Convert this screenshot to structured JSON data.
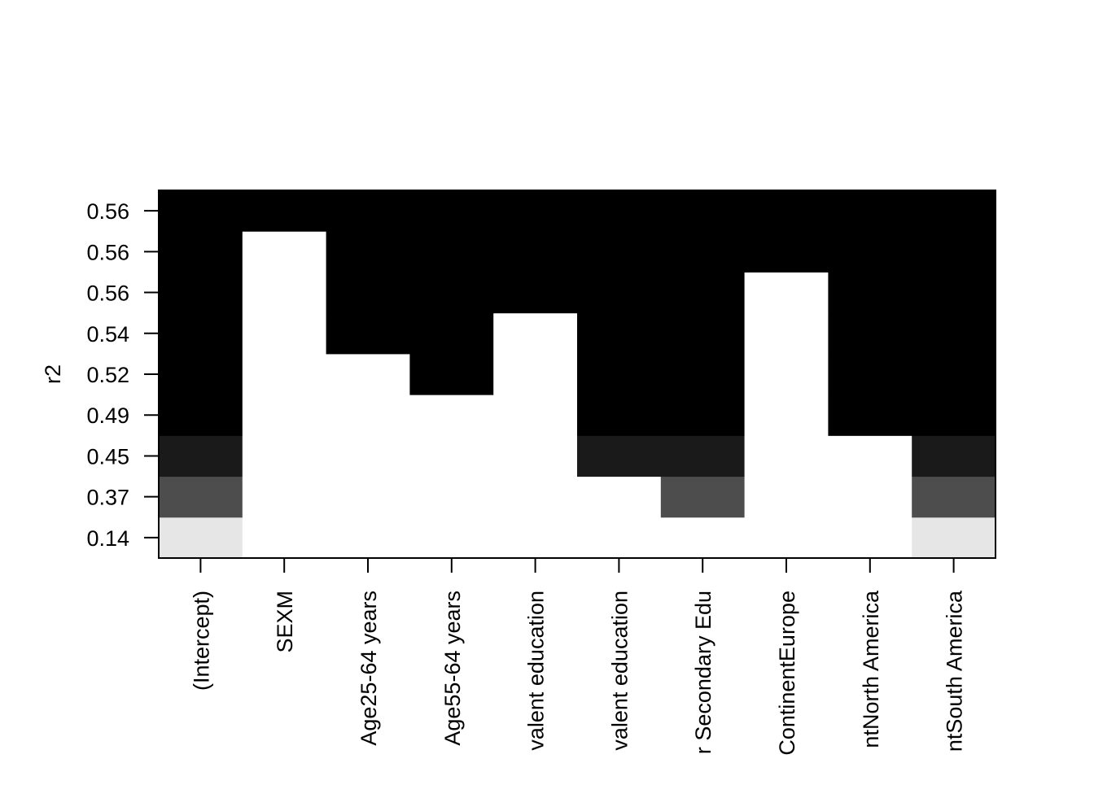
{
  "chart_data": {
    "type": "heatmap",
    "y_label": "r2",
    "categories": [
      "(Intercept)",
      "SEXM",
      "Age25-64 years",
      "Age55-64 years",
      "valent education",
      "valent education",
      "r Secondary Edu",
      "ContinentEurope",
      "ntNorth America",
      "ntSouth America"
    ],
    "row_labels": [
      0.14,
      0.37,
      0.45,
      0.49,
      0.52,
      0.54,
      0.56,
      0.56,
      0.56
    ],
    "row_colors": [
      "#e6e6e6",
      "#4d4d4d",
      "#1a1a1a",
      "#000000",
      "#000000",
      "#000000",
      "#000000",
      "#000000",
      "#000000"
    ],
    "empty_color": "#ffffff",
    "values": [
      [
        1,
        0,
        0,
        0,
        0,
        0,
        0,
        0,
        0,
        1
      ],
      [
        1,
        0,
        0,
        0,
        0,
        0,
        1,
        0,
        0,
        1
      ],
      [
        1,
        0,
        0,
        0,
        0,
        1,
        1,
        0,
        0,
        1
      ],
      [
        1,
        0,
        0,
        0,
        0,
        1,
        1,
        0,
        1,
        1
      ],
      [
        1,
        0,
        0,
        1,
        0,
        1,
        1,
        0,
        1,
        1
      ],
      [
        1,
        0,
        1,
        1,
        0,
        1,
        1,
        0,
        1,
        1
      ],
      [
        1,
        0,
        1,
        1,
        1,
        1,
        1,
        0,
        1,
        1
      ],
      [
        1,
        0,
        1,
        1,
        1,
        1,
        1,
        1,
        1,
        1
      ],
      [
        1,
        1,
        1,
        1,
        1,
        1,
        1,
        1,
        1,
        1
      ]
    ]
  }
}
